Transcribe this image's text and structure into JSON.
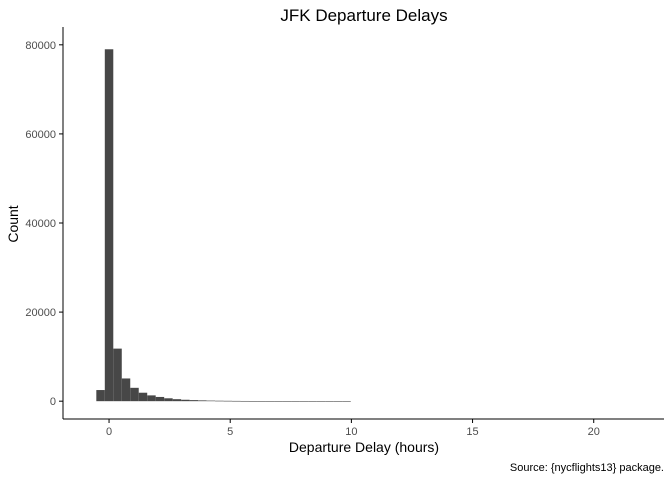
{
  "chart_data": {
    "type": "bar",
    "title": "JFK Departure Delays",
    "xlabel": "Departure Delay (hours)",
    "ylabel": "Count",
    "caption": "Source: {nycflights13} package.",
    "x_ticks": [
      0,
      5,
      10,
      15,
      20
    ],
    "y_ticks": [
      0,
      20000,
      40000,
      60000,
      80000
    ],
    "xlim": [
      -1.9,
      22.9
    ],
    "ylim": [
      -4000,
      84000
    ],
    "bin_width": 0.35,
    "bins": [
      {
        "x": -0.35,
        "count": 2500
      },
      {
        "x": 0.0,
        "count": 79000
      },
      {
        "x": 0.35,
        "count": 11800
      },
      {
        "x": 0.7,
        "count": 5100
      },
      {
        "x": 1.05,
        "count": 3000
      },
      {
        "x": 1.4,
        "count": 1900
      },
      {
        "x": 1.75,
        "count": 1300
      },
      {
        "x": 2.1,
        "count": 950
      },
      {
        "x": 2.45,
        "count": 650
      },
      {
        "x": 2.8,
        "count": 450
      },
      {
        "x": 3.15,
        "count": 320
      },
      {
        "x": 3.5,
        "count": 240
      },
      {
        "x": 3.85,
        "count": 180
      },
      {
        "x": 4.2,
        "count": 130
      },
      {
        "x": 4.55,
        "count": 100
      },
      {
        "x": 4.9,
        "count": 80
      },
      {
        "x": 5.25,
        "count": 60
      },
      {
        "x": 5.6,
        "count": 45
      },
      {
        "x": 5.95,
        "count": 35
      },
      {
        "x": 6.3,
        "count": 25
      },
      {
        "x": 6.65,
        "count": 20
      },
      {
        "x": 7.0,
        "count": 15
      },
      {
        "x": 7.35,
        "count": 10
      },
      {
        "x": 7.7,
        "count": 8
      },
      {
        "x": 8.05,
        "count": 5
      },
      {
        "x": 8.4,
        "count": 4
      },
      {
        "x": 8.75,
        "count": 3
      },
      {
        "x": 9.1,
        "count": 2
      },
      {
        "x": 9.45,
        "count": 2
      },
      {
        "x": 9.8,
        "count": 1
      }
    ],
    "colors": {
      "bar": "#474747",
      "axis": "#000000",
      "tick_label": "#4d4d4d"
    }
  }
}
